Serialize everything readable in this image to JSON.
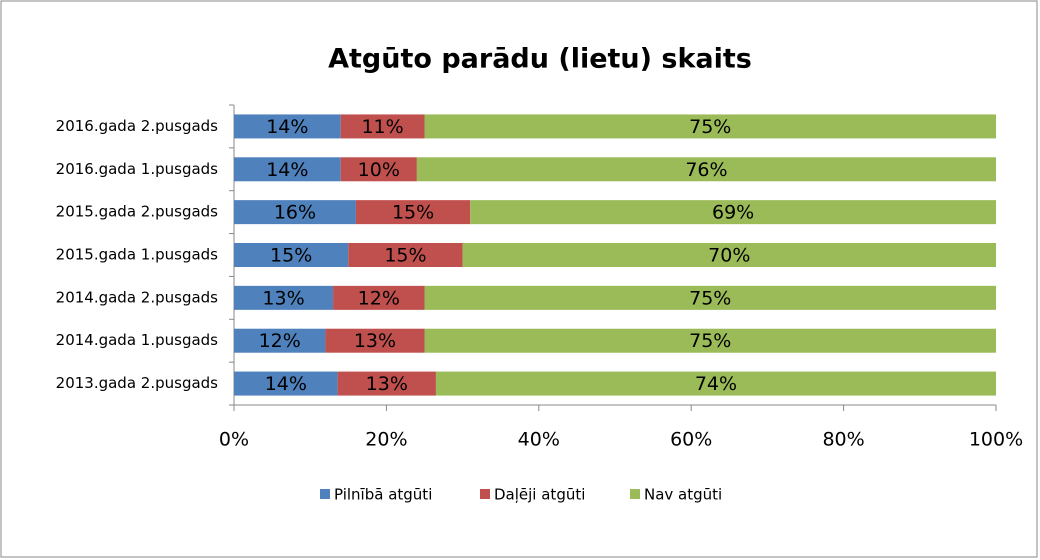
{
  "chart_data": {
    "type": "stacked-barh",
    "title": "Atgūto parādu (lietu) skaits",
    "categories": [
      "2016.gada 2.pusgads",
      "2016.gada 1.pusgads",
      "2015.gada 2.pusgads",
      "2015.gada 1.pusgads",
      "2014.gada 2.pusgads",
      "2014.gada 1.pusgads",
      "2013.gada 2.pusgads"
    ],
    "series": [
      {
        "name": "Pilnībā atgūti",
        "color": "#4f81bd",
        "values": [
          14,
          14,
          16,
          15,
          13,
          12,
          13.6
        ],
        "value_labels": [
          "14%",
          "14%",
          "16%",
          "15%",
          "13%",
          "12%",
          "14%"
        ]
      },
      {
        "name": "Daļēji atgūti",
        "color": "#c0504d",
        "values": [
          11,
          10,
          15,
          15,
          12,
          13,
          12.9
        ],
        "value_labels": [
          "11%",
          "10%",
          "15%",
          "15%",
          "12%",
          "13%",
          "13%"
        ]
      },
      {
        "name": "Nav atgūti",
        "color": "#9bbb59",
        "values": [
          75,
          76,
          69,
          70,
          75,
          75,
          73.5
        ],
        "value_labels": [
          "75%",
          "76%",
          "69%",
          "70%",
          "75%",
          "75%",
          "74%"
        ]
      }
    ],
    "xlim": [
      0,
      100
    ],
    "xticks": [
      {
        "value": 0,
        "label": "0%"
      },
      {
        "value": 20,
        "label": "20%"
      },
      {
        "value": 40,
        "label": "40%"
      },
      {
        "value": 60,
        "label": "60%"
      },
      {
        "value": 80,
        "label": "80%"
      },
      {
        "value": 100,
        "label": "100%"
      }
    ],
    "legend": "bottom"
  }
}
